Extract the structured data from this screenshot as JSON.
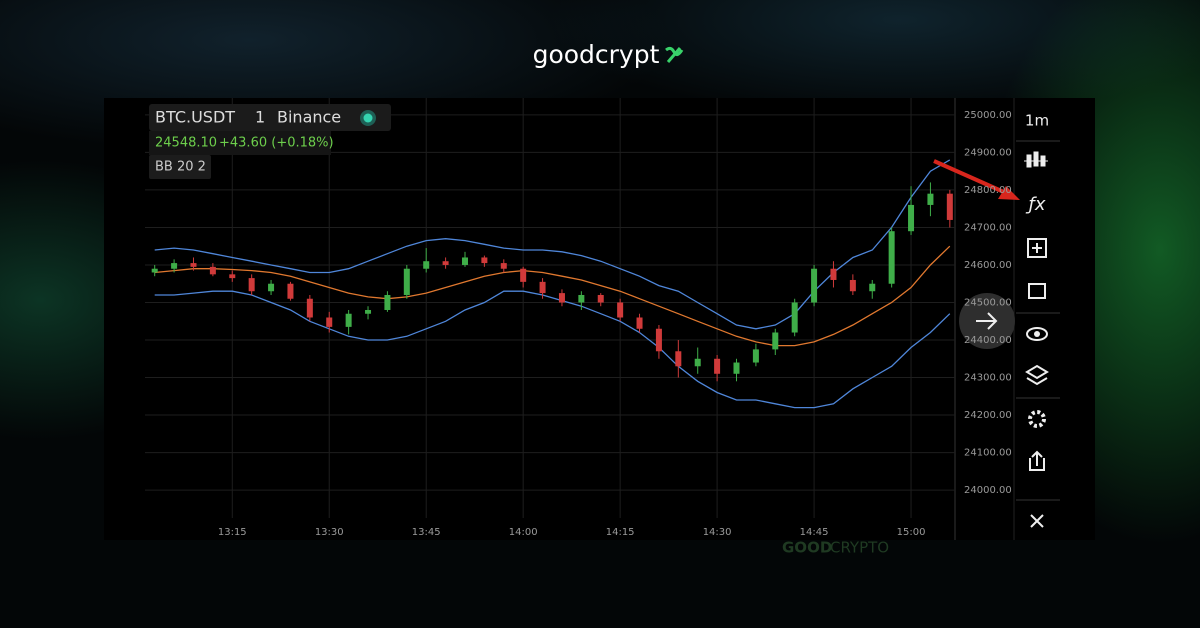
{
  "header": {
    "logo": "goodcrypt"
  },
  "legend": {
    "symbol": "BTC.USDT",
    "interval": "1",
    "exchange": "Binance",
    "price": "24548.10",
    "change": "+43.60 (+0.18%)",
    "indicator": "BB 20 2"
  },
  "toolbar": {
    "interval": "1m"
  },
  "watermark": {
    "bold": "GOOD",
    "light": "CRYPTO"
  },
  "chart_data": {
    "type": "candlestick",
    "x": [
      783,
      786,
      789,
      792,
      795,
      798,
      801,
      804,
      807,
      810,
      813,
      816,
      819,
      822,
      825,
      828,
      831,
      834,
      837,
      840,
      843,
      846,
      849,
      852,
      855,
      858,
      861,
      864,
      867,
      870,
      873,
      876,
      879,
      882,
      885,
      888,
      891,
      894,
      897,
      900,
      903,
      906
    ],
    "open": [
      24580,
      24590,
      24605,
      24595,
      24575,
      24565,
      24530,
      24550,
      24510,
      24460,
      24435,
      24470,
      24480,
      24520,
      24590,
      24610,
      24600,
      24620,
      24605,
      24590,
      24555,
      24525,
      24500,
      24520,
      24500,
      24460,
      24430,
      24370,
      24330,
      24350,
      24310,
      24340,
      24375,
      24420,
      24500,
      24590,
      24560,
      24530,
      24550,
      24690,
      24760,
      24790
    ],
    "high": [
      24600,
      24615,
      24620,
      24605,
      24585,
      24575,
      24560,
      24555,
      24520,
      24475,
      24480,
      24490,
      24530,
      24600,
      24645,
      24620,
      24635,
      24625,
      24615,
      24595,
      24565,
      24535,
      24530,
      24525,
      24510,
      24470,
      24440,
      24400,
      24380,
      24360,
      24350,
      24390,
      24430,
      24510,
      24600,
      24610,
      24575,
      24560,
      24700,
      24810,
      24820,
      24800
    ],
    "low": [
      24570,
      24580,
      24585,
      24570,
      24555,
      24520,
      24520,
      24505,
      24450,
      24420,
      24415,
      24455,
      24475,
      24510,
      24580,
      24590,
      24595,
      24595,
      24580,
      24540,
      24510,
      24490,
      24480,
      24490,
      24450,
      24420,
      24350,
      24300,
      24310,
      24290,
      24290,
      24330,
      24360,
      24410,
      24490,
      24540,
      24520,
      24510,
      24540,
      24680,
      24730,
      24700
    ],
    "close": [
      24590,
      24605,
      24595,
      24575,
      24565,
      24530,
      24550,
      24510,
      24460,
      24435,
      24470,
      24480,
      24520,
      24590,
      24610,
      24600,
      24620,
      24605,
      24590,
      24555,
      24525,
      24500,
      24520,
      24500,
      24460,
      24430,
      24370,
      24330,
      24350,
      24310,
      24340,
      24375,
      24420,
      24500,
      24590,
      24560,
      24530,
      24550,
      24690,
      24760,
      24790,
      24720
    ],
    "up_color": "#3fae49",
    "down_color": "#d03a3a",
    "series": [
      {
        "color": "#4f86d9",
        "values": [
          24640,
          24645,
          24640,
          24630,
          24620,
          24610,
          24600,
          24590,
          24580,
          24580,
          24590,
          24610,
          24630,
          24650,
          24665,
          24670,
          24665,
          24655,
          24645,
          24640,
          24640,
          24635,
          24625,
          24610,
          24590,
          24570,
          24545,
          24530,
          24500,
          24470,
          24440,
          24430,
          24440,
          24470,
          24530,
          24580,
          24620,
          24640,
          24700,
          24780,
          24850,
          24880
        ]
      },
      {
        "color": "#e0782f",
        "values": [
          24580,
          24585,
          24590,
          24590,
          24588,
          24585,
          24580,
          24570,
          24555,
          24540,
          24525,
          24515,
          24510,
          24515,
          24525,
          24540,
          24555,
          24570,
          24580,
          24585,
          24580,
          24570,
          24560,
          24545,
          24530,
          24510,
          24490,
          24470,
          24450,
          24430,
          24410,
          24395,
          24385,
          24385,
          24395,
          24415,
          24440,
          24470,
          24500,
          24540,
          24600,
          24650
        ]
      },
      {
        "color": "#4f86d9",
        "values": [
          24520,
          24520,
          24525,
          24530,
          24530,
          24520,
          24500,
          24480,
          24450,
          24430,
          24410,
          24400,
          24400,
          24410,
          24430,
          24450,
          24480,
          24500,
          24530,
          24530,
          24520,
          24505,
          24490,
          24470,
          24450,
          24420,
          24380,
          24330,
          24290,
          24260,
          24240,
          24240,
          24230,
          24220,
          24220,
          24230,
          24270,
          24300,
          24330,
          24380,
          24420,
          24470
        ]
      }
    ],
    "xlim": [
      781.5,
      906.8
    ],
    "ylim": [
      23867,
      25045
    ],
    "xticks": [
      {
        "value": 795,
        "label": "13:15"
      },
      {
        "value": 810,
        "label": "13:30"
      },
      {
        "value": 825,
        "label": "13:45"
      },
      {
        "value": 840,
        "label": "14:00"
      },
      {
        "value": 855,
        "label": "14:15"
      },
      {
        "value": 870,
        "label": "14:30"
      },
      {
        "value": 885,
        "label": "14:45"
      },
      {
        "value": 900,
        "label": "15:00"
      }
    ],
    "yticks": [
      {
        "value": 24000,
        "label": "24000.00"
      },
      {
        "value": 24100,
        "label": "24100.00"
      },
      {
        "value": 24200,
        "label": "24200.00"
      },
      {
        "value": 24300,
        "label": "24300.00"
      },
      {
        "value": 24400,
        "label": "24400.00"
      },
      {
        "value": 24500,
        "label": "24500.00"
      },
      {
        "value": 24600,
        "label": "24600.00"
      },
      {
        "value": 24700,
        "label": "24700.00"
      },
      {
        "value": 24800,
        "label": "24800.00"
      },
      {
        "value": 24900,
        "label": "24900.00"
      },
      {
        "value": 25000,
        "label": "25000.00"
      }
    ],
    "grid": true
  }
}
